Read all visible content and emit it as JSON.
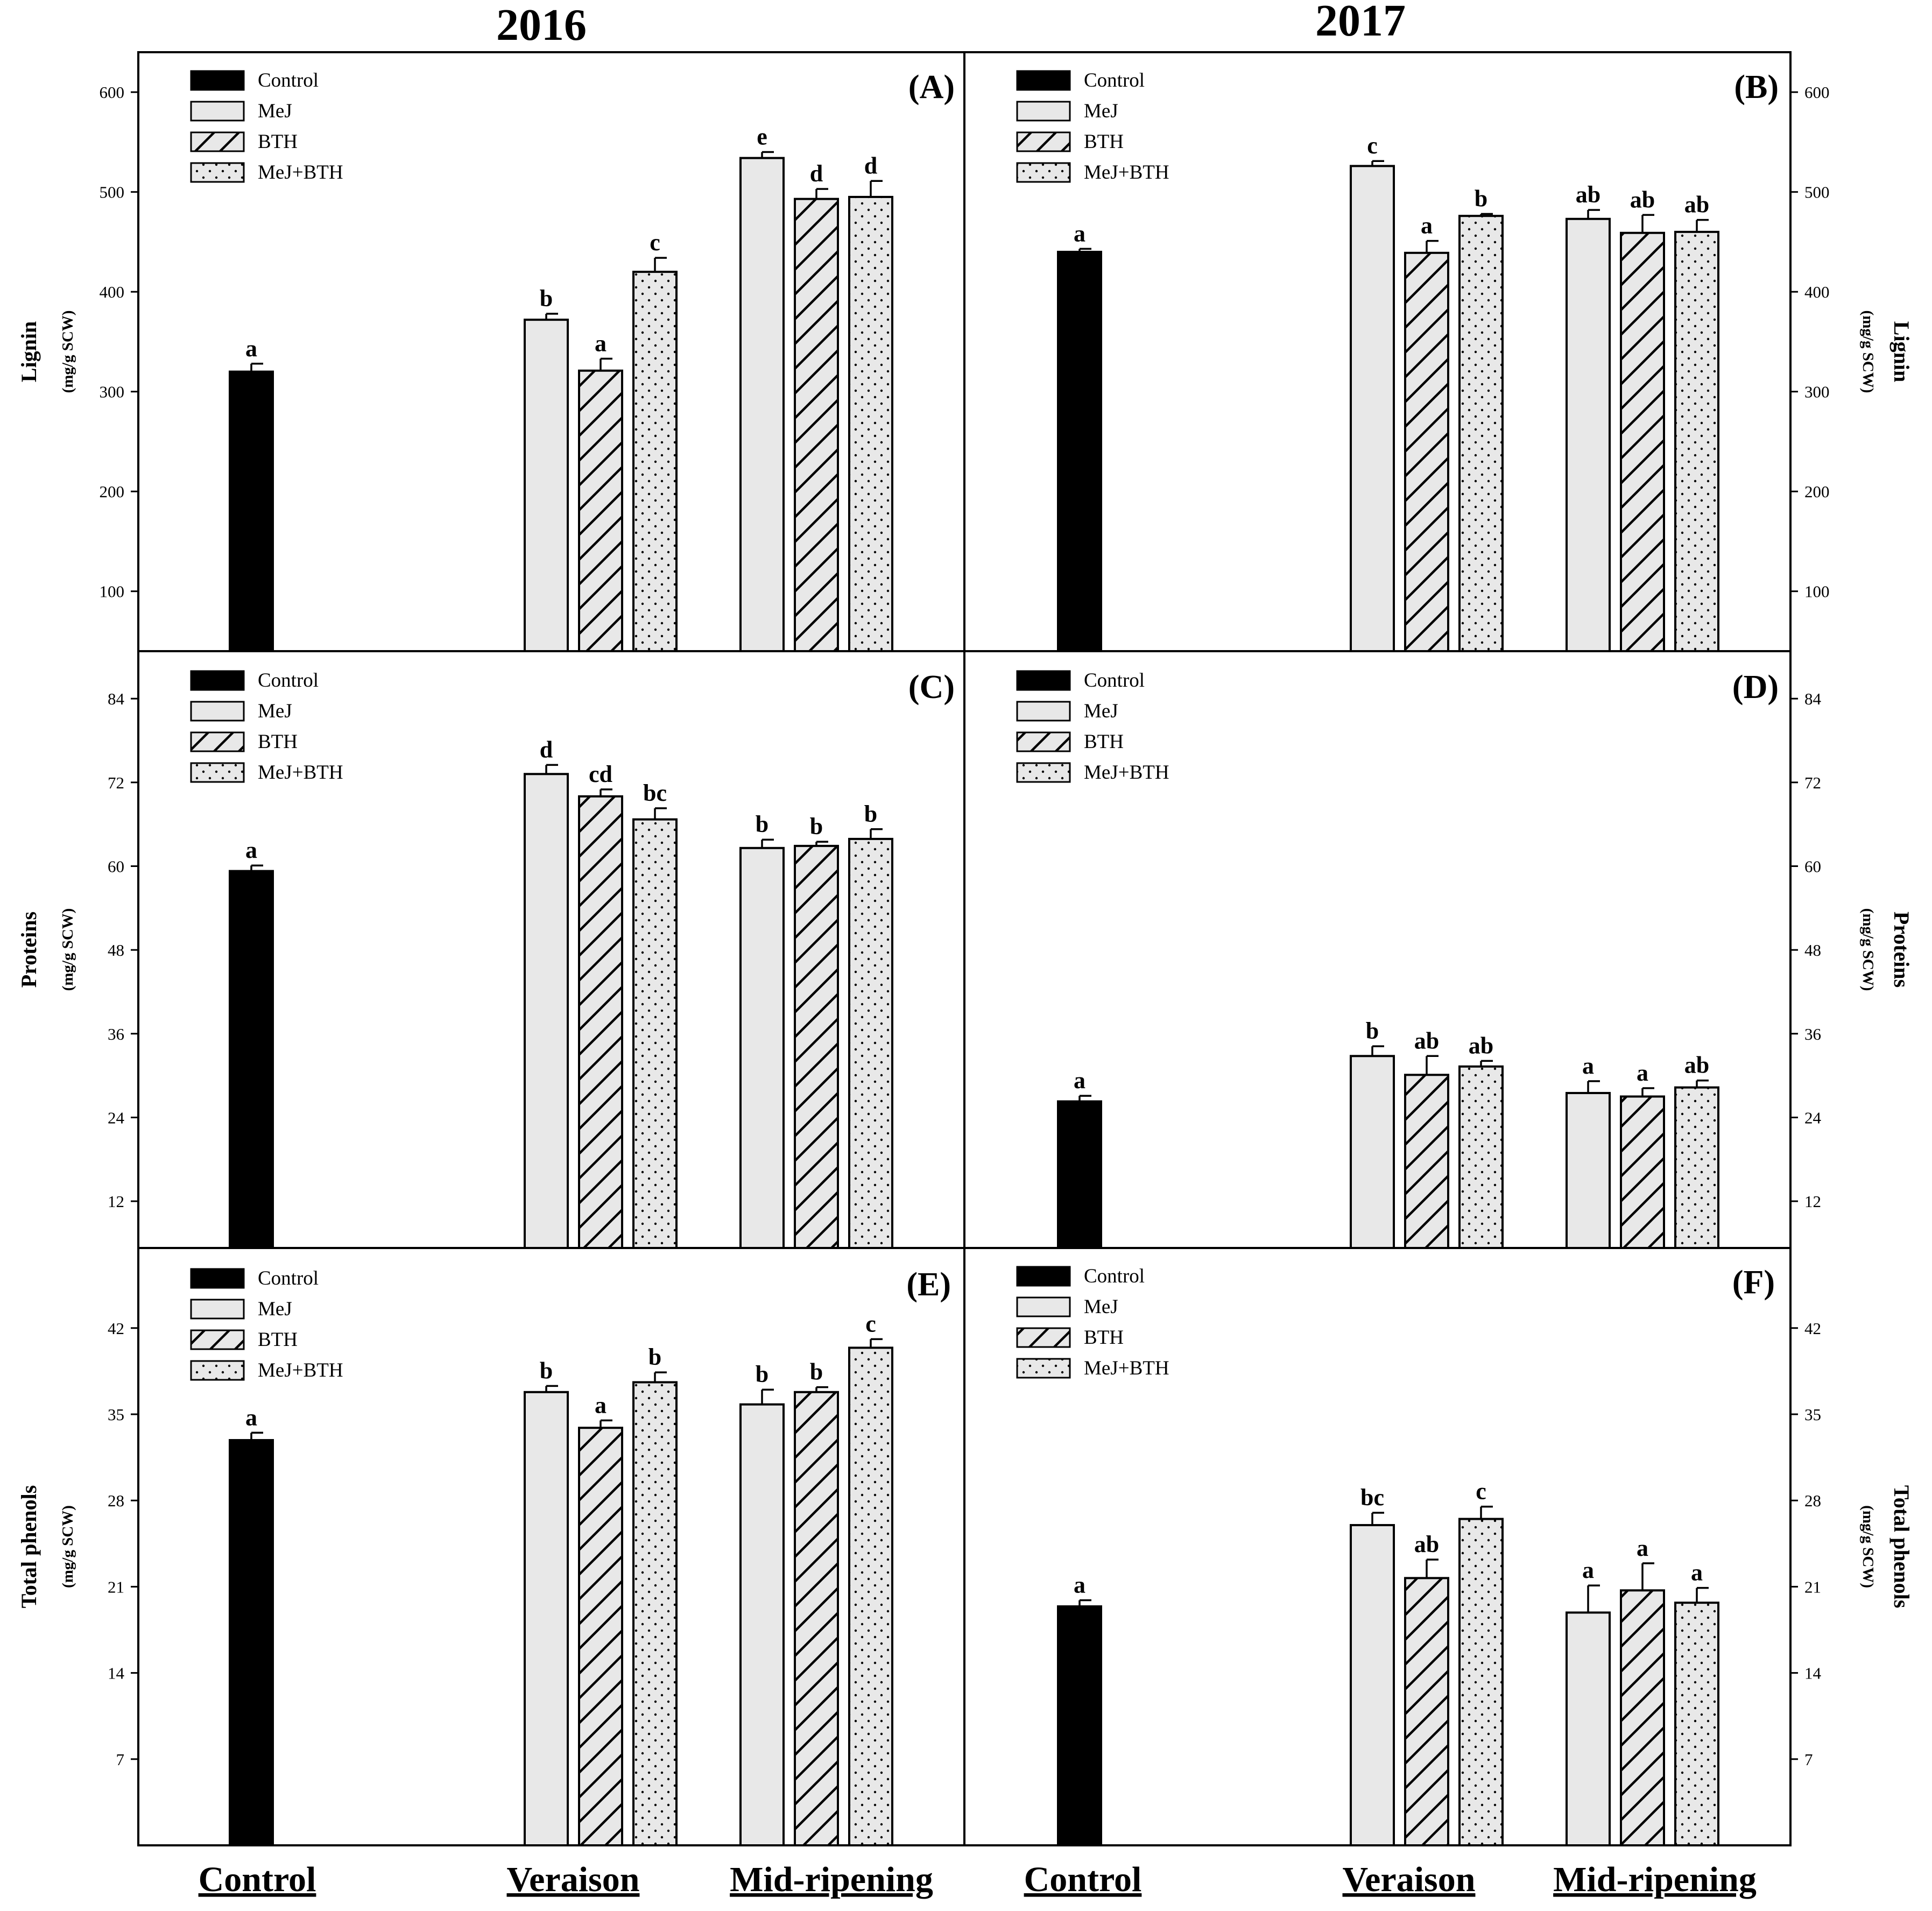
{
  "figure": {
    "years": [
      "2016",
      "2017"
    ],
    "legend": [
      "Control",
      "MeJ",
      "BTH",
      "MeJ+BTH"
    ],
    "groups": [
      "Control",
      "Veraison",
      "Mid-ripening"
    ],
    "colors": {
      "control": "#000000",
      "treated": "#e8e8e8",
      "stroke": "#000000"
    }
  },
  "chart_data": [
    {
      "type": "bar",
      "panel": "(A)",
      "year": "2016",
      "ylabel": "Lignin",
      "yunit": "(mg/g SCW)",
      "ylim": [
        40,
        640
      ],
      "yticks": [
        100,
        200,
        300,
        400,
        500,
        600
      ],
      "control": {
        "value": 320,
        "err": 8,
        "letter": "a"
      },
      "categories": [
        "Veraison",
        "Mid-ripening"
      ],
      "series": [
        {
          "name": "MeJ",
          "values": [
            372,
            534
          ],
          "err": [
            6,
            6
          ],
          "letters": [
            "b",
            "e"
          ]
        },
        {
          "name": "BTH",
          "values": [
            321,
            493
          ],
          "err": [
            12,
            10
          ],
          "letters": [
            "a",
            "d"
          ]
        },
        {
          "name": "MeJ+BTH",
          "values": [
            420,
            495
          ],
          "err": [
            14,
            16
          ],
          "letters": [
            "c",
            "d"
          ]
        }
      ]
    },
    {
      "type": "bar",
      "panel": "(B)",
      "year": "2017",
      "ylabel": "Lignin",
      "yunit": "(mg/g SCW)",
      "ylim": [
        40,
        640
      ],
      "yticks": [
        100,
        200,
        300,
        400,
        500,
        600
      ],
      "control": {
        "value": 440,
        "err": 3,
        "letter": "a"
      },
      "categories": [
        "Veraison",
        "Mid-ripening"
      ],
      "series": [
        {
          "name": "MeJ",
          "values": [
            526,
            473
          ],
          "err": [
            5,
            9
          ],
          "letters": [
            "c",
            "ab"
          ]
        },
        {
          "name": "BTH",
          "values": [
            439,
            459
          ],
          "err": [
            12,
            18
          ],
          "letters": [
            "a",
            "ab"
          ]
        },
        {
          "name": "MeJ+BTH",
          "values": [
            476,
            460
          ],
          "err": [
            2,
            12
          ],
          "letters": [
            "b",
            "ab"
          ]
        }
      ]
    },
    {
      "type": "bar",
      "panel": "(C)",
      "year": "2016",
      "ylabel": "Proteins",
      "yunit": "(mg/g SCW)",
      "ylim": [
        5.3,
        90.8
      ],
      "yticks": [
        12,
        24,
        36,
        48,
        60,
        72,
        84
      ],
      "control": {
        "value": 59.3,
        "err": 0.8,
        "letter": "a"
      },
      "categories": [
        "Veraison",
        "Mid-ripening"
      ],
      "series": [
        {
          "name": "MeJ",
          "values": [
            73.2,
            62.6
          ],
          "err": [
            1.3,
            1.2
          ],
          "letters": [
            "d",
            "b"
          ]
        },
        {
          "name": "BTH",
          "values": [
            70.0,
            62.9
          ],
          "err": [
            1.0,
            0.6
          ],
          "letters": [
            "cd",
            "b"
          ]
        },
        {
          "name": "MeJ+BTH",
          "values": [
            66.7,
            63.9
          ],
          "err": [
            1.6,
            1.4
          ],
          "letters": [
            "bc",
            "b"
          ]
        }
      ]
    },
    {
      "type": "bar",
      "panel": "(D)",
      "year": "2017",
      "ylabel": "Proteins",
      "yunit": "(mg/g SCW)",
      "ylim": [
        5.3,
        90.8
      ],
      "yticks": [
        12,
        24,
        36,
        48,
        60,
        72,
        84
      ],
      "control": {
        "value": 26.3,
        "err": 0.8,
        "letter": "a"
      },
      "categories": [
        "Veraison",
        "Mid-ripening"
      ],
      "series": [
        {
          "name": "MeJ",
          "values": [
            32.8,
            27.5
          ],
          "err": [
            1.4,
            1.7
          ],
          "letters": [
            "b",
            "a"
          ]
        },
        {
          "name": "BTH",
          "values": [
            30.1,
            27.0
          ],
          "err": [
            2.7,
            1.2
          ],
          "letters": [
            "ab",
            "a"
          ]
        },
        {
          "name": "MeJ+BTH",
          "values": [
            31.3,
            28.3
          ],
          "err": [
            0.8,
            1.0
          ],
          "letters": [
            "ab",
            "ab"
          ]
        }
      ]
    },
    {
      "type": "bar",
      "panel": "(E)",
      "year": "2016",
      "ylabel": "Total phenols",
      "yunit": "(mg/g SCW)",
      "ylim": [
        0,
        48.5
      ],
      "yticks": [
        7,
        14,
        21,
        28,
        35,
        42
      ],
      "control": {
        "value": 32.9,
        "err": 0.6,
        "letter": "a"
      },
      "categories": [
        "Veraison",
        "Mid-ripening"
      ],
      "series": [
        {
          "name": "MeJ",
          "values": [
            36.8,
            35.8
          ],
          "err": [
            0.5,
            1.2
          ],
          "letters": [
            "b",
            "b"
          ]
        },
        {
          "name": "BTH",
          "values": [
            33.9,
            36.8
          ],
          "err": [
            0.6,
            0.4
          ],
          "letters": [
            "a",
            "b"
          ]
        },
        {
          "name": "MeJ+BTH",
          "values": [
            37.6,
            40.4
          ],
          "err": [
            0.8,
            0.7
          ],
          "letters": [
            "b",
            "c"
          ]
        }
      ]
    },
    {
      "type": "bar",
      "panel": "(F)",
      "year": "2017",
      "ylabel": "Total phenols",
      "yunit": "(mg/g SCW)",
      "ylim": [
        0,
        48.5
      ],
      "yticks": [
        7,
        14,
        21,
        28,
        35,
        42
      ],
      "control": {
        "value": 19.4,
        "err": 0.5,
        "letter": "a"
      },
      "categories": [
        "Veraison",
        "Mid-ripening"
      ],
      "series": [
        {
          "name": "MeJ",
          "values": [
            26.0,
            18.9
          ],
          "err": [
            1.0,
            2.2
          ],
          "letters": [
            "bc",
            "a"
          ]
        },
        {
          "name": "BTH",
          "values": [
            21.7,
            20.7
          ],
          "err": [
            1.5,
            2.2
          ],
          "letters": [
            "ab",
            "a"
          ]
        },
        {
          "name": "MeJ+BTH",
          "values": [
            26.5,
            19.7
          ],
          "err": [
            1.0,
            1.2
          ],
          "letters": [
            "c",
            "a"
          ]
        }
      ]
    }
  ]
}
